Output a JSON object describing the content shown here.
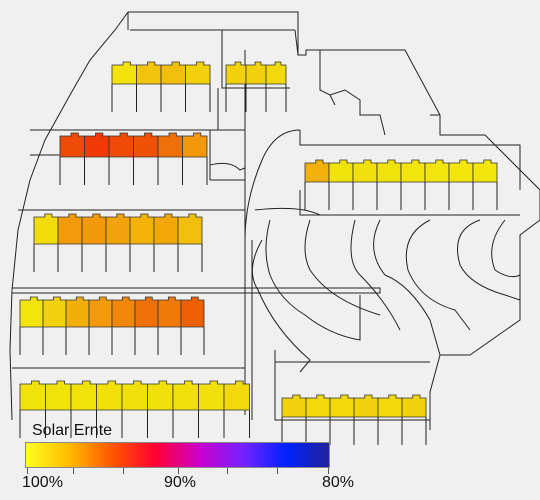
{
  "legend": {
    "title": "Solar Ernte",
    "labels": [
      "100%",
      "90%",
      "80%"
    ],
    "gradient": [
      "#ffff22",
      "#ffbb00",
      "#ff5500",
      "#ff0033",
      "#cc00cc",
      "#7722ff",
      "#0022ff",
      "#222299"
    ]
  },
  "colors": {
    "background": "#f0f0f0",
    "lines": "#222222",
    "roof_outline": "#333333",
    "harvest_100": "#f2ea0a",
    "harvest_99": "#f4d80e",
    "harvest_98": "#f3c10c",
    "harvest_97": "#f2a50a",
    "harvest_96": "#f08a08",
    "harvest_95": "#ef6a06",
    "harvest_94": "#ee4a04"
  },
  "rows": [
    {
      "name": "row-top-left",
      "colors": [
        "#f3e20b",
        "#f2c40c",
        "#f2be0c",
        "#f2d00c"
      ]
    },
    {
      "name": "row-top-right",
      "colors": [
        "#f2d20c",
        "#f2d20c",
        "#f2d80c"
      ]
    },
    {
      "name": "row-orange",
      "colors": [
        "#ee4a08",
        "#ef3a06",
        "#ef4a06",
        "#ef5206",
        "#f07008",
        "#f2980a"
      ]
    },
    {
      "name": "row-mid",
      "colors": [
        "#f2dc0c",
        "#f29a0a",
        "#f2980a",
        "#f2a20a",
        "#f2b20a",
        "#f2a80a",
        "#f2be0c"
      ]
    },
    {
      "name": "row-lower",
      "colors": [
        "#f2e40c",
        "#f2d20c",
        "#f2ae0a",
        "#f29a0a",
        "#f0860a",
        "#f07008",
        "#f07a08",
        "#ee6006"
      ]
    },
    {
      "name": "row-bottom",
      "colors": [
        "#f2e20c",
        "#f2e20c",
        "#f2e20c",
        "#f2e00c",
        "#f2e00c",
        "#f2e00c",
        "#f2e00c",
        "#f2e00c",
        "#f2d80c"
      ]
    },
    {
      "name": "row-right",
      "colors": [
        "#f2b00a",
        "#f2e20c",
        "#f2e00c",
        "#f2e20c",
        "#f2e40c",
        "#f2e40c",
        "#f2e60c",
        "#f2e60c"
      ]
    },
    {
      "name": "row-bottom-right",
      "colors": [
        "#f2d20c",
        "#f2d80c",
        "#f2d80c",
        "#f2d20c",
        "#f2d80c",
        "#f2d20c"
      ]
    }
  ]
}
